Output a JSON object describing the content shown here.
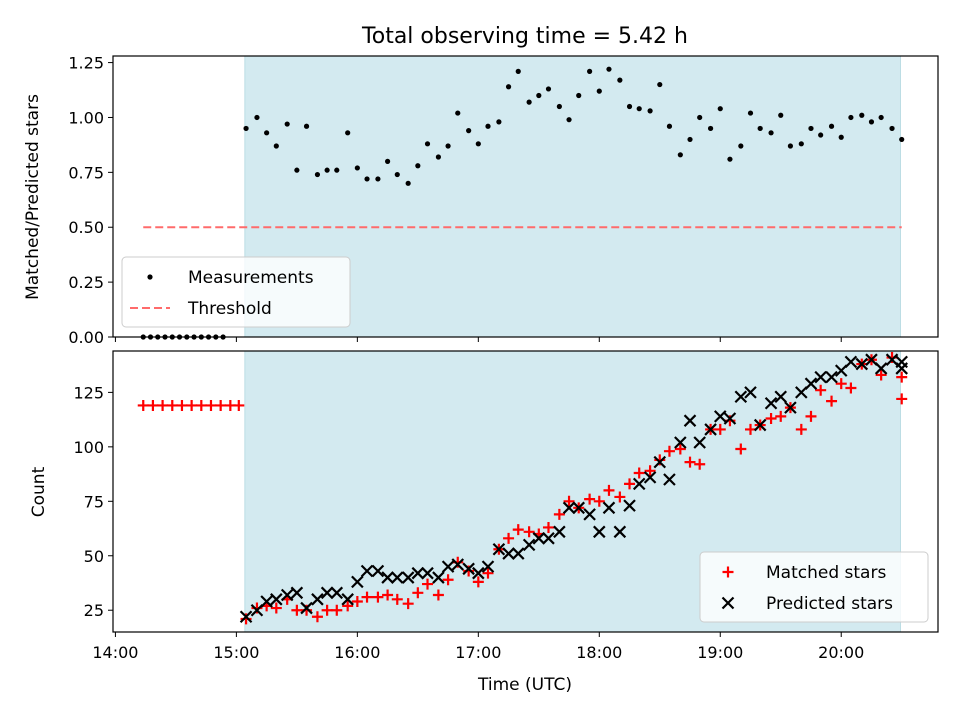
{
  "chart_data": {
    "title": "Total observing time = 5.42 h",
    "xlabel": "Time (UTC)",
    "x_unit": "hours UTC",
    "x_range": [
      13.98,
      20.8
    ],
    "x_ticks": [
      14,
      15,
      16,
      17,
      18,
      19,
      20
    ],
    "x_tick_labels": [
      "14:00",
      "15:00",
      "16:00",
      "17:00",
      "18:00",
      "19:00",
      "20:00"
    ],
    "observing_window": [
      15.07,
      20.49
    ],
    "colors": {
      "window": "#d3eaf0",
      "measurement": "#000000",
      "threshold": "#ff6b6b",
      "matched": "#ff0000",
      "predicted": "#000000"
    },
    "panels": [
      {
        "type": "scatter",
        "ylabel": "Matched/Predicted stars",
        "ylim": [
          0,
          1.28
        ],
        "y_ticks": [
          0,
          0.25,
          0.5,
          0.75,
          1.0,
          1.25
        ],
        "y_tick_labels": [
          "0.00",
          "0.25",
          "0.50",
          "0.75",
          "1.00",
          "1.25"
        ],
        "legend_position": "lower-left",
        "legend": [
          {
            "label": "Measurements",
            "marker": "dot"
          },
          {
            "label": "Threshold",
            "marker": "dashed-line"
          }
        ],
        "threshold": {
          "y": 0.5,
          "x_range": [
            14.23,
            20.5
          ]
        },
        "series": [
          {
            "name": "Measurements",
            "points": [
              [
                14.23,
                0
              ],
              [
                14.29,
                0
              ],
              [
                14.35,
                0
              ],
              [
                14.41,
                0
              ],
              [
                14.47,
                0
              ],
              [
                14.53,
                0
              ],
              [
                14.59,
                0
              ],
              [
                14.65,
                0
              ],
              [
                14.71,
                0
              ],
              [
                14.77,
                0
              ],
              [
                14.83,
                0
              ],
              [
                14.89,
                0
              ],
              [
                15.08,
                0.95
              ],
              [
                15.17,
                1.0
              ],
              [
                15.25,
                0.93
              ],
              [
                15.33,
                0.87
              ],
              [
                15.42,
                0.97
              ],
              [
                15.5,
                0.76
              ],
              [
                15.58,
                0.96
              ],
              [
                15.67,
                0.74
              ],
              [
                15.75,
                0.76
              ],
              [
                15.83,
                0.76
              ],
              [
                15.92,
                0.93
              ],
              [
                16.0,
                0.77
              ],
              [
                16.08,
                0.72
              ],
              [
                16.17,
                0.72
              ],
              [
                16.25,
                0.8
              ],
              [
                16.33,
                0.74
              ],
              [
                16.42,
                0.7
              ],
              [
                16.5,
                0.78
              ],
              [
                16.58,
                0.88
              ],
              [
                16.67,
                0.82
              ],
              [
                16.75,
                0.87
              ],
              [
                16.83,
                1.02
              ],
              [
                16.92,
                0.94
              ],
              [
                17.0,
                0.88
              ],
              [
                17.08,
                0.96
              ],
              [
                17.17,
                0.98
              ],
              [
                17.25,
                1.14
              ],
              [
                17.33,
                1.21
              ],
              [
                17.42,
                1.07
              ],
              [
                17.5,
                1.1
              ],
              [
                17.58,
                1.13
              ],
              [
                17.67,
                1.05
              ],
              [
                17.75,
                0.99
              ],
              [
                17.83,
                1.1
              ],
              [
                17.92,
                1.21
              ],
              [
                18.0,
                1.12
              ],
              [
                18.08,
                1.22
              ],
              [
                18.17,
                1.17
              ],
              [
                18.25,
                1.05
              ],
              [
                18.33,
                1.04
              ],
              [
                18.42,
                1.03
              ],
              [
                18.5,
                1.15
              ],
              [
                18.58,
                0.96
              ],
              [
                18.67,
                0.83
              ],
              [
                18.75,
                0.9
              ],
              [
                18.83,
                1.0
              ],
              [
                18.92,
                0.95
              ],
              [
                19.0,
                1.04
              ],
              [
                19.08,
                0.81
              ],
              [
                19.17,
                0.87
              ],
              [
                19.25,
                1.02
              ],
              [
                19.33,
                0.95
              ],
              [
                19.42,
                0.93
              ],
              [
                19.5,
                1.01
              ],
              [
                19.58,
                0.87
              ],
              [
                19.67,
                0.88
              ],
              [
                19.75,
                0.95
              ],
              [
                19.83,
                0.92
              ],
              [
                19.92,
                0.96
              ],
              [
                20.0,
                0.91
              ],
              [
                20.08,
                1.0
              ],
              [
                20.17,
                1.01
              ],
              [
                20.25,
                0.98
              ],
              [
                20.33,
                1.0
              ],
              [
                20.42,
                0.95
              ],
              [
                20.5,
                0.9
              ]
            ]
          }
        ]
      },
      {
        "type": "scatter",
        "ylabel": "Count",
        "ylim": [
          15,
          144
        ],
        "y_ticks": [
          25,
          50,
          75,
          100,
          125
        ],
        "y_tick_labels": [
          "25",
          "50",
          "75",
          "100",
          "125"
        ],
        "legend_position": "lower-right",
        "legend": [
          {
            "label": "Matched stars",
            "marker": "plus"
          },
          {
            "label": "Predicted stars",
            "marker": "x"
          }
        ],
        "series": [
          {
            "name": "Matched stars",
            "points": [
              [
                14.23,
                119
              ],
              [
                14.31,
                119
              ],
              [
                14.39,
                119
              ],
              [
                14.47,
                119
              ],
              [
                14.55,
                119
              ],
              [
                14.63,
                119
              ],
              [
                14.71,
                119
              ],
              [
                14.79,
                119
              ],
              [
                14.87,
                119
              ],
              [
                14.95,
                119
              ],
              [
                15.02,
                119
              ],
              [
                15.08,
                21
              ],
              [
                15.17,
                26
              ],
              [
                15.25,
                27
              ],
              [
                15.33,
                26
              ],
              [
                15.42,
                30
              ],
              [
                15.5,
                25
              ],
              [
                15.58,
                25
              ],
              [
                15.67,
                22
              ],
              [
                15.75,
                25
              ],
              [
                15.83,
                25
              ],
              [
                15.92,
                27
              ],
              [
                16.0,
                29
              ],
              [
                16.08,
                31
              ],
              [
                16.17,
                31
              ],
              [
                16.25,
                32
              ],
              [
                16.33,
                30
              ],
              [
                16.42,
                28
              ],
              [
                16.5,
                33
              ],
              [
                16.58,
                37
              ],
              [
                16.67,
                32
              ],
              [
                16.75,
                39
              ],
              [
                16.83,
                47
              ],
              [
                16.92,
                43
              ],
              [
                17.0,
                38
              ],
              [
                17.08,
                42
              ],
              [
                17.17,
                53
              ],
              [
                17.25,
                58
              ],
              [
                17.33,
                62
              ],
              [
                17.42,
                61
              ],
              [
                17.5,
                60
              ],
              [
                17.58,
                63
              ],
              [
                17.67,
                69
              ],
              [
                17.75,
                75
              ],
              [
                17.83,
                72
              ],
              [
                17.92,
                76
              ],
              [
                18.0,
                75
              ],
              [
                18.08,
                80
              ],
              [
                18.17,
                77
              ],
              [
                18.25,
                83
              ],
              [
                18.33,
                88
              ],
              [
                18.42,
                89
              ],
              [
                18.5,
                94
              ],
              [
                18.58,
                98
              ],
              [
                18.67,
                99
              ],
              [
                18.75,
                93
              ],
              [
                18.83,
                92
              ],
              [
                18.92,
                108
              ],
              [
                19.0,
                108
              ],
              [
                19.08,
                112
              ],
              [
                19.17,
                99
              ],
              [
                19.25,
                108
              ],
              [
                19.33,
                110
              ],
              [
                19.42,
                113
              ],
              [
                19.5,
                114
              ],
              [
                19.58,
                118
              ],
              [
                19.67,
                108
              ],
              [
                19.75,
                114
              ],
              [
                19.83,
                126
              ],
              [
                19.92,
                121
              ],
              [
                20.0,
                129
              ],
              [
                20.08,
                127
              ],
              [
                20.17,
                138
              ],
              [
                20.25,
                140
              ],
              [
                20.33,
                133
              ],
              [
                20.42,
                141
              ],
              [
                20.5,
                132
              ],
              [
                20.5,
                122
              ]
            ]
          },
          {
            "name": "Predicted stars",
            "points": [
              [
                15.08,
                22
              ],
              [
                15.17,
                25
              ],
              [
                15.25,
                29
              ],
              [
                15.33,
                30
              ],
              [
                15.42,
                32
              ],
              [
                15.5,
                33
              ],
              [
                15.58,
                26
              ],
              [
                15.67,
                30
              ],
              [
                15.75,
                33
              ],
              [
                15.83,
                33
              ],
              [
                15.92,
                30
              ],
              [
                16.0,
                38
              ],
              [
                16.08,
                43
              ],
              [
                16.17,
                43
              ],
              [
                16.25,
                40
              ],
              [
                16.33,
                40
              ],
              [
                16.42,
                40
              ],
              [
                16.5,
                42
              ],
              [
                16.58,
                42
              ],
              [
                16.67,
                40
              ],
              [
                16.75,
                45
              ],
              [
                16.83,
                46
              ],
              [
                16.92,
                44
              ],
              [
                17.0,
                42
              ],
              [
                17.08,
                45
              ],
              [
                17.17,
                53
              ],
              [
                17.25,
                51
              ],
              [
                17.33,
                51
              ],
              [
                17.42,
                55
              ],
              [
                17.5,
                58
              ],
              [
                17.58,
                58
              ],
              [
                17.67,
                61
              ],
              [
                17.75,
                72
              ],
              [
                17.83,
                72
              ],
              [
                17.92,
                69
              ],
              [
                18.0,
                61
              ],
              [
                18.08,
                72
              ],
              [
                18.17,
                61
              ],
              [
                18.25,
                73
              ],
              [
                18.33,
                83
              ],
              [
                18.42,
                86
              ],
              [
                18.5,
                93
              ],
              [
                18.58,
                85
              ],
              [
                18.67,
                102
              ],
              [
                18.75,
                112
              ],
              [
                18.83,
                102
              ],
              [
                18.92,
                108
              ],
              [
                19.0,
                114
              ],
              [
                19.08,
                113
              ],
              [
                19.17,
                123
              ],
              [
                19.25,
                125
              ],
              [
                19.33,
                110
              ],
              [
                19.42,
                120
              ],
              [
                19.5,
                123
              ],
              [
                19.58,
                118
              ],
              [
                19.67,
                125
              ],
              [
                19.75,
                129
              ],
              [
                19.83,
                132
              ],
              [
                19.92,
                132
              ],
              [
                20.0,
                135
              ],
              [
                20.08,
                139
              ],
              [
                20.17,
                138
              ],
              [
                20.25,
                140
              ],
              [
                20.33,
                136
              ],
              [
                20.42,
                140
              ],
              [
                20.5,
                139
              ],
              [
                20.5,
                136
              ]
            ]
          }
        ]
      }
    ]
  }
}
